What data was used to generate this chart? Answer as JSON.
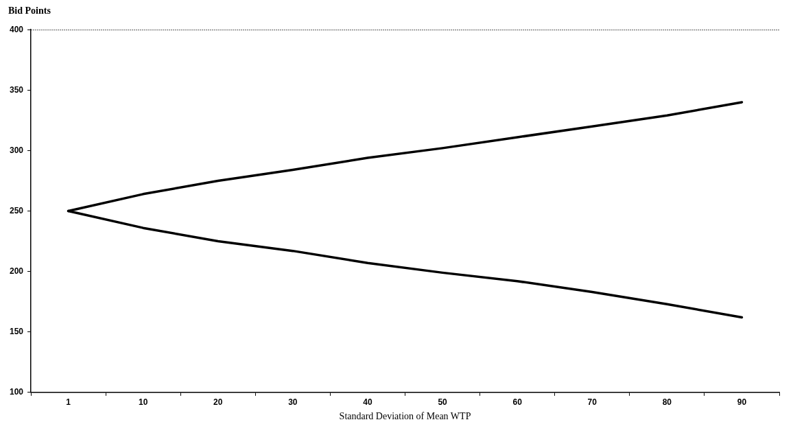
{
  "chart_data": {
    "type": "line",
    "xlabel": "Standard Deviation of Mean WTP",
    "ylabel": "Bid Points",
    "categories": [
      "1",
      "10",
      "20",
      "30",
      "40",
      "50",
      "60",
      "70",
      "80",
      "90"
    ],
    "series": [
      {
        "color": "#000000",
        "values": [
          250,
          264,
          275,
          284,
          294,
          302,
          311,
          320,
          329,
          340
        ]
      },
      {
        "color": "#000000",
        "values": [
          250,
          236,
          225,
          217,
          207,
          199,
          192,
          183,
          173,
          162
        ]
      }
    ],
    "ylim": [
      100,
      400
    ],
    "yticks": [
      100,
      150,
      200,
      250,
      300,
      350,
      400
    ],
    "grid": false,
    "legend": false,
    "marker": "none",
    "line_style": "solid"
  }
}
